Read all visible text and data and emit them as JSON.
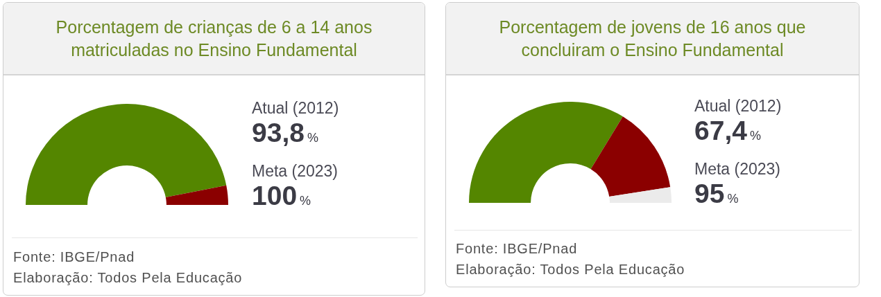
{
  "chart_data": [
    {
      "type": "donut",
      "title": "Porcentagem de crianças de 6 a 14 anos matriculadas no Ensino Fundamental",
      "categories": [
        null,
        null
      ],
      "values": [
        93.8,
        6.2
      ],
      "colors": [
        "#548600",
        "#8b0000"
      ],
      "annotations": [
        "Atual (2012)",
        "93,8%",
        "Meta (2023)",
        "100%",
        "Fonte: IBGE/Pnad",
        "Elaboração: Todos Pela Educação"
      ]
    },
    {
      "type": "donut",
      "title": "Porcentagem de jovens de 16 anos que concluiram o Ensino Fundamental",
      "categories": [
        null,
        null,
        null
      ],
      "values": [
        67.4,
        27.6,
        5
      ],
      "colors": [
        "#548600",
        "#8b0000",
        "#ebebeb"
      ],
      "annotations": [
        "Atual (2012)",
        "67,4%",
        "Meta (2023)",
        "95%",
        "Fonte: IBGE/Pnad",
        "Elaboração: Todos Pela Educação"
      ]
    }
  ]
}
